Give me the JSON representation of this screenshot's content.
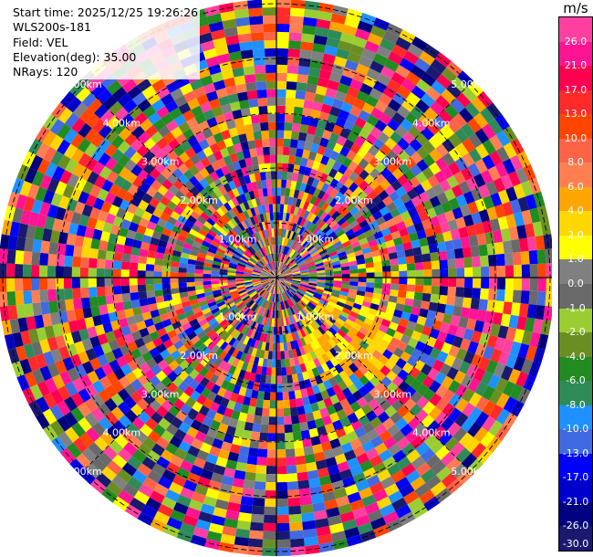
{
  "info": {
    "start_time": "Start time: 2025/12/25 19:26:26",
    "site": "WLS200s-181",
    "field": "Field: VEL",
    "elevation": "Elevation(deg): 35.00",
    "nrays": "NRays: 120"
  },
  "colorbar": {
    "unit": "m/s",
    "ticks": [
      "26.0",
      "21.0",
      "17.0",
      "13.0",
      "10.0",
      "8.0",
      "6.0",
      "4.0",
      "2.0",
      "1.0",
      "0.0",
      "-1.0",
      "-2.0",
      "-4.0",
      "-6.0",
      "-8.0",
      "-10.0",
      "-13.0",
      "-17.0",
      "-21.0",
      "-26.0",
      "-30.0"
    ],
    "colors": [
      "#ff40a0",
      "#ff1493",
      "#ff0050",
      "#ff2a2a",
      "#ff4500",
      "#ff6347",
      "#ff7f50",
      "#ffa500",
      "#ffd700",
      "#ffff00",
      "#808080",
      "#696969",
      "#9acd32",
      "#6b8e23",
      "#228b22",
      "#2e8b57",
      "#1e90ff",
      "#4169e1",
      "#0000ff",
      "#0000cd",
      "#000080",
      "#191970"
    ]
  },
  "chart_data": {
    "type": "heatmap",
    "projection": "polar PPI",
    "field": "VEL",
    "units": "m/s",
    "n_rays": 120,
    "range_ring_labels": [
      "1.00km",
      "2.00km",
      "3.00km",
      "4.00km",
      "5.00km"
    ],
    "color_scale_min": -30.0,
    "color_scale_max": 26.0,
    "notes": "Per-gate values are noise-dominated; the colorful pattern is synthesized, with a yellow (about 2-4 m/s) patch in the lower-right quadrant near 1-2 km."
  }
}
